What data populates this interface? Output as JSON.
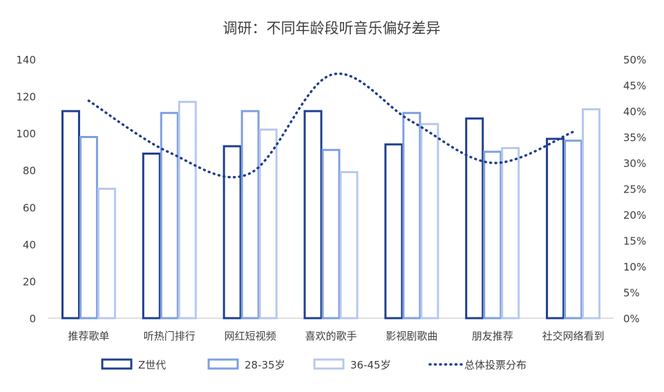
{
  "chart_data": {
    "type": "bar",
    "title": "调研：不同年龄段听音乐偏好差异",
    "categories": [
      "推荐歌单",
      "听热门排行",
      "网红短视频",
      "喜欢的歌手",
      "影视剧歌曲",
      "朋友推荐",
      "社交网络看到"
    ],
    "series": [
      {
        "name": "Z世代",
        "values": [
          112,
          89,
          93,
          112,
          94,
          108,
          97
        ]
      },
      {
        "name": "28-35岁",
        "values": [
          98,
          111,
          112,
          91,
          111,
          90,
          96
        ]
      },
      {
        "name": "36-45岁",
        "values": [
          70,
          117,
          102,
          79,
          105,
          92,
          113
        ]
      }
    ],
    "line_series": {
      "name": "总体投票分布",
      "axis": "right",
      "values": [
        0.42,
        0.32,
        0.28,
        0.47,
        0.38,
        0.3,
        0.36
      ]
    },
    "ylim": [
      0,
      140
    ],
    "y_ticks": [
      "0",
      "20",
      "40",
      "60",
      "80",
      "100",
      "120",
      "140"
    ],
    "y2lim": [
      0,
      0.5
    ],
    "y2_ticks": [
      "0%",
      "5%",
      "10%",
      "15%",
      "20%",
      "25%",
      "30%",
      "35%",
      "40%",
      "45%",
      "50%"
    ],
    "grid": false,
    "legend_position": "bottom"
  },
  "colors": {
    "series": [
      "#1f3f8f",
      "#7f9fe0",
      "#b8c8ee"
    ],
    "line": "#1f3f8f",
    "axis": "#bfbfbf",
    "text": "#404040"
  }
}
